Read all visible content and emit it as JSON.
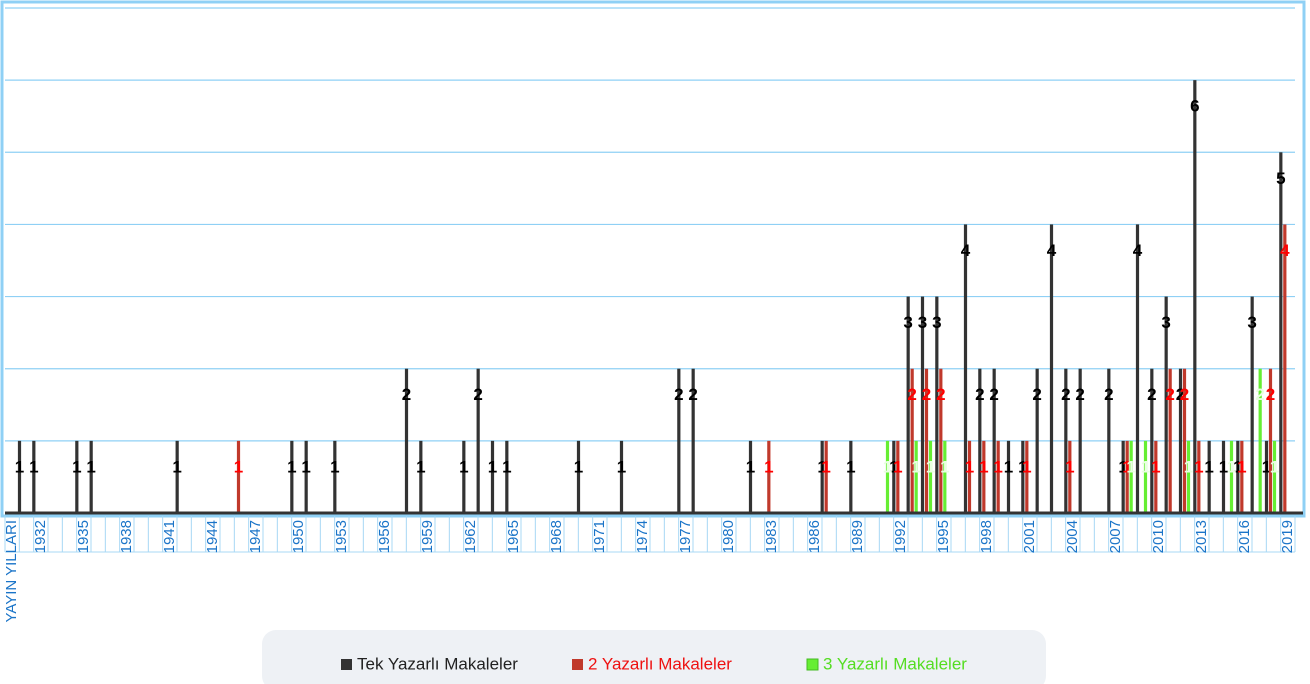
{
  "chart_data": {
    "type": "bar",
    "categories": [
      "YAYIN YILLARI",
      null,
      "1932",
      null,
      null,
      "1935",
      null,
      null,
      "1938",
      null,
      null,
      "1941",
      null,
      null,
      "1944",
      null,
      null,
      "1947",
      null,
      null,
      "1950",
      null,
      null,
      "1953",
      null,
      null,
      "1956",
      null,
      null,
      "1959",
      null,
      null,
      "1962",
      null,
      null,
      "1965",
      null,
      null,
      "1968",
      null,
      null,
      "1971",
      null,
      null,
      "1974",
      null,
      null,
      "1977",
      null,
      null,
      "1980",
      null,
      null,
      "1983",
      null,
      null,
      "1986",
      null,
      null,
      "1989",
      null,
      null,
      "1992",
      null,
      null,
      "1995",
      null,
      null,
      "1998",
      null,
      null,
      "2001",
      null,
      null,
      "2004",
      null,
      null,
      "2007",
      null,
      null,
      "2010",
      null,
      null,
      "2013",
      null,
      null,
      "2016",
      null,
      null,
      "2019"
    ],
    "series": [
      {
        "name": "Tek Yazarlı Makaleler",
        "color": "#333333",
        "label_color": "#000000",
        "values": [
          null,
          1,
          1,
          null,
          null,
          1,
          1,
          null,
          null,
          null,
          null,
          null,
          1,
          null,
          null,
          null,
          null,
          null,
          null,
          null,
          1,
          1,
          null,
          1,
          null,
          null,
          null,
          null,
          2,
          1,
          null,
          null,
          1,
          2,
          1,
          1,
          null,
          null,
          null,
          null,
          1,
          null,
          null,
          1,
          null,
          null,
          null,
          2,
          2,
          null,
          null,
          null,
          1,
          null,
          null,
          null,
          null,
          1,
          null,
          1,
          null,
          null,
          1,
          3,
          3,
          3,
          null,
          4,
          2,
          2,
          1,
          1,
          2,
          4,
          2,
          2,
          null,
          2,
          1,
          4,
          2,
          3,
          2,
          6,
          1,
          1,
          1,
          3,
          1,
          5
        ]
      },
      {
        "name": "2 Yazarlı Makaleler",
        "color": "#c0392b",
        "label_color": "#ff0000",
        "values": [
          null,
          null,
          null,
          null,
          null,
          null,
          null,
          null,
          null,
          null,
          null,
          null,
          null,
          null,
          null,
          null,
          1,
          null,
          null,
          null,
          null,
          null,
          null,
          null,
          null,
          null,
          null,
          null,
          null,
          null,
          null,
          null,
          null,
          null,
          null,
          null,
          null,
          null,
          null,
          null,
          null,
          null,
          null,
          null,
          null,
          null,
          null,
          null,
          null,
          null,
          null,
          null,
          null,
          1,
          null,
          null,
          null,
          1,
          null,
          null,
          null,
          null,
          1,
          2,
          2,
          2,
          null,
          1,
          1,
          1,
          null,
          1,
          null,
          null,
          1,
          null,
          null,
          null,
          1,
          null,
          1,
          2,
          2,
          1,
          null,
          null,
          1,
          null,
          2,
          4
        ]
      },
      {
        "name": "3 Yazarlı Makaleler",
        "color": "#66ee33",
        "label_color": "#e8ffe0",
        "values": [
          null,
          null,
          null,
          null,
          null,
          null,
          null,
          null,
          null,
          null,
          null,
          null,
          null,
          null,
          null,
          null,
          null,
          null,
          null,
          null,
          null,
          null,
          null,
          null,
          null,
          null,
          null,
          null,
          null,
          null,
          null,
          null,
          null,
          null,
          null,
          null,
          null,
          null,
          null,
          null,
          null,
          null,
          null,
          null,
          null,
          null,
          null,
          null,
          null,
          null,
          null,
          null,
          null,
          null,
          null,
          null,
          null,
          null,
          null,
          null,
          null,
          1,
          null,
          1,
          1,
          1,
          null,
          null,
          null,
          null,
          null,
          null,
          null,
          null,
          null,
          null,
          null,
          null,
          1,
          1,
          null,
          null,
          1,
          null,
          null,
          1,
          null,
          2,
          1,
          null
        ]
      }
    ],
    "ylim": [
      0,
      7
    ],
    "yticks": [
      0,
      1,
      2,
      3,
      4,
      5,
      6,
      7
    ],
    "grid": true,
    "legend": "bottom"
  }
}
